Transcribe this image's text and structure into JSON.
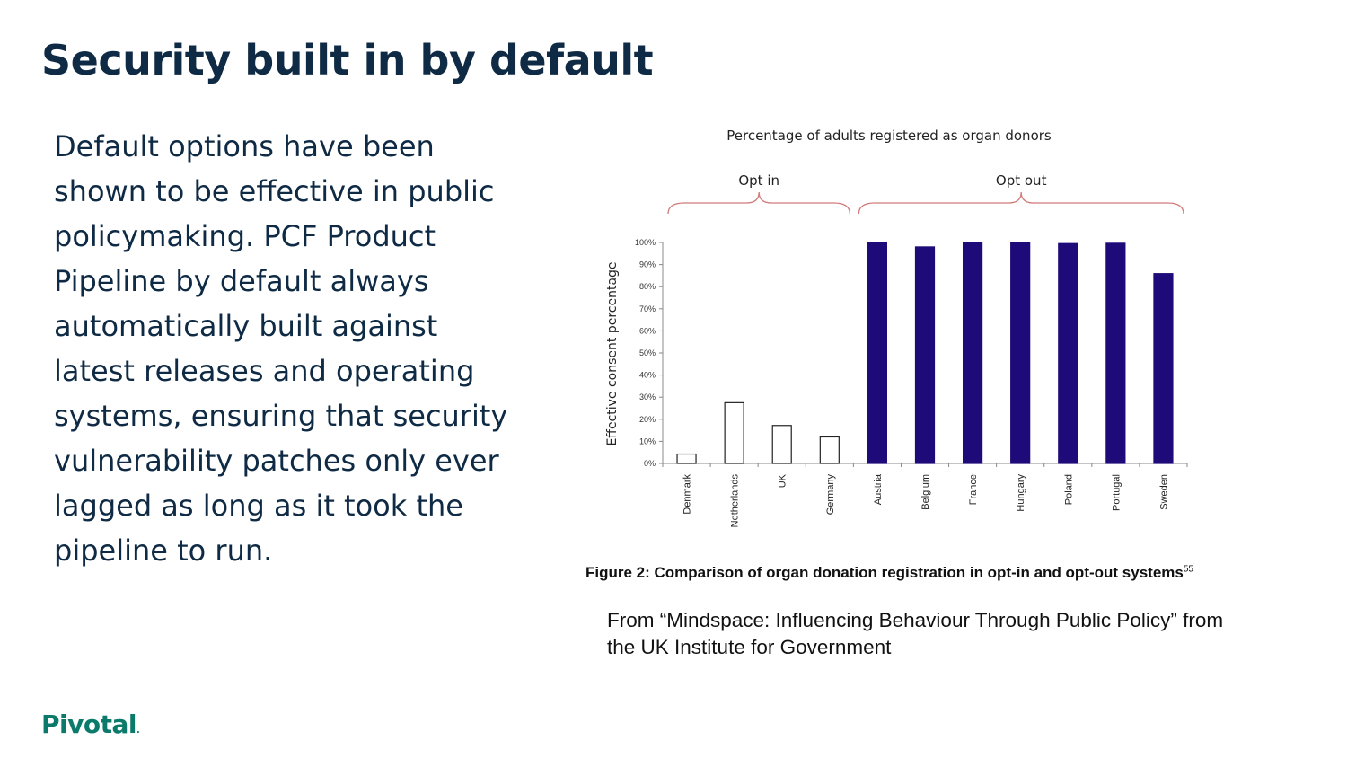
{
  "slide": {
    "title": "Security built in by default",
    "body": "Default options have been shown to be effective in public policymaking. PCF Product Pipeline by default always automatically built against latest releases and operating systems, ensuring that security vulnerability patches only ever lagged as long as it took the pipeline to run.",
    "figure_caption": "Figure 2: Comparison of organ donation registration in opt-in and opt-out systems",
    "figure_ref": "55",
    "source_note": "From “Mindspace: Influencing Behaviour Through Public Policy” from the UK Institute for Government",
    "logo_text": "Pivotal",
    "logo_mark": "."
  },
  "chart_data": {
    "type": "bar",
    "title": "Percentage of adults registered as organ donors",
    "ylabel": "Effective consent percentage",
    "xlabel": "",
    "ylim": [
      0,
      100
    ],
    "yticks": [
      "0%",
      "10%",
      "20%",
      "30%",
      "40%",
      "50%",
      "60%",
      "70%",
      "80%",
      "90%",
      "100%"
    ],
    "categories": [
      "Denmark",
      "Netherlands",
      "UK",
      "Germany",
      "Austria",
      "Belgium",
      "France",
      "Hungary",
      "Poland",
      "Portugal",
      "Sweden"
    ],
    "values": [
      4.25,
      27.5,
      17.17,
      12,
      99.98,
      98,
      99.91,
      99.97,
      99.5,
      99.64,
      85.9
    ],
    "groups": [
      {
        "label": "Opt in",
        "categories": [
          "Denmark",
          "Netherlands",
          "UK",
          "Germany"
        ],
        "style": "outline"
      },
      {
        "label": "Opt out",
        "categories": [
          "Austria",
          "Belgium",
          "France",
          "Hungary",
          "Poland",
          "Portugal",
          "Sweden"
        ],
        "style": "filled"
      }
    ],
    "colors": {
      "opt_out_fill": "#1e0a78",
      "opt_in_fill": "#ffffff",
      "bar_stroke": "#222222",
      "bracket": "#d07a7a",
      "axis": "#888888"
    },
    "grid": false
  }
}
